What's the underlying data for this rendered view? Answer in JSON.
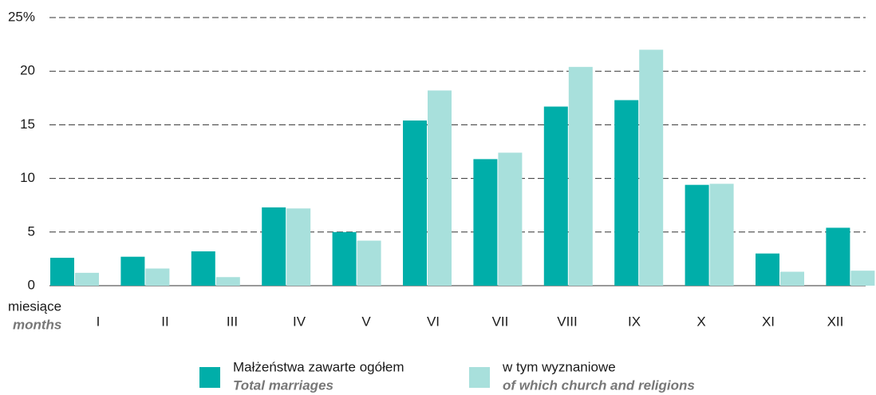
{
  "chart_data": {
    "type": "bar",
    "x_label": "miesiące",
    "x_label_en": "months",
    "categories": [
      "I",
      "II",
      "III",
      "IV",
      "V",
      "VI",
      "VII",
      "VIII",
      "IX",
      "X",
      "XI",
      "XII"
    ],
    "series": [
      {
        "name": "Małżeństwa zawarte ogółem",
        "name_en": "Total marriages",
        "color": "#00aea9",
        "values": [
          2.6,
          2.7,
          3.2,
          7.3,
          5.0,
          15.4,
          11.8,
          16.7,
          17.3,
          9.4,
          3.0,
          5.4
        ]
      },
      {
        "name": "w tym wyznaniowe",
        "name_en": "of which church and religions",
        "color": "#a8e0dc",
        "values": [
          1.2,
          1.6,
          0.8,
          7.2,
          4.2,
          18.2,
          12.4,
          20.4,
          22.0,
          9.5,
          1.3,
          1.4
        ]
      }
    ],
    "ylim": [
      0,
      25
    ],
    "yticks": [
      0,
      5,
      10,
      15,
      20,
      {
        "value": 25,
        "label": "25%"
      }
    ],
    "grid": true
  }
}
